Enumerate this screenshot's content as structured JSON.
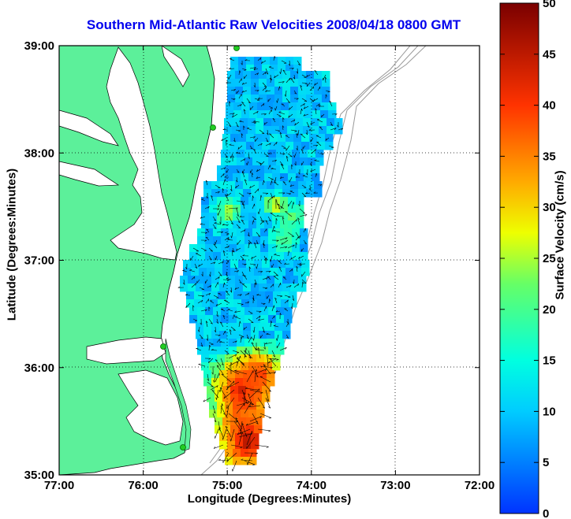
{
  "title": "Southern Mid-Atlantic Raw Velocities 2008/04/18 0800 GMT",
  "map": {
    "xlabel": "Longitude (Degrees:Minutes)",
    "ylabel": "Latitude (Degrees:Minutes)",
    "x_ticks": [
      "77:00",
      "76:00",
      "75:00",
      "74:00",
      "73:00",
      "72:00"
    ],
    "y_ticks": [
      "39:00",
      "38:00",
      "37:00",
      "36:00",
      "35:00"
    ],
    "lon_range": [
      -77,
      -72
    ],
    "lat_range": [
      35,
      39
    ],
    "grid": true,
    "colors": {
      "land": "#5cf09a",
      "coast": "#000000",
      "bathymetry": "#999999",
      "station": "#22cc22",
      "arrow": "#000000"
    }
  },
  "colorbar": {
    "label": "Surface Velocity (cm/s)",
    "ticks": [
      "50",
      "45",
      "40",
      "35",
      "30",
      "25",
      "20",
      "15",
      "10",
      "5",
      "0"
    ],
    "range": [
      0,
      50
    ]
  }
}
